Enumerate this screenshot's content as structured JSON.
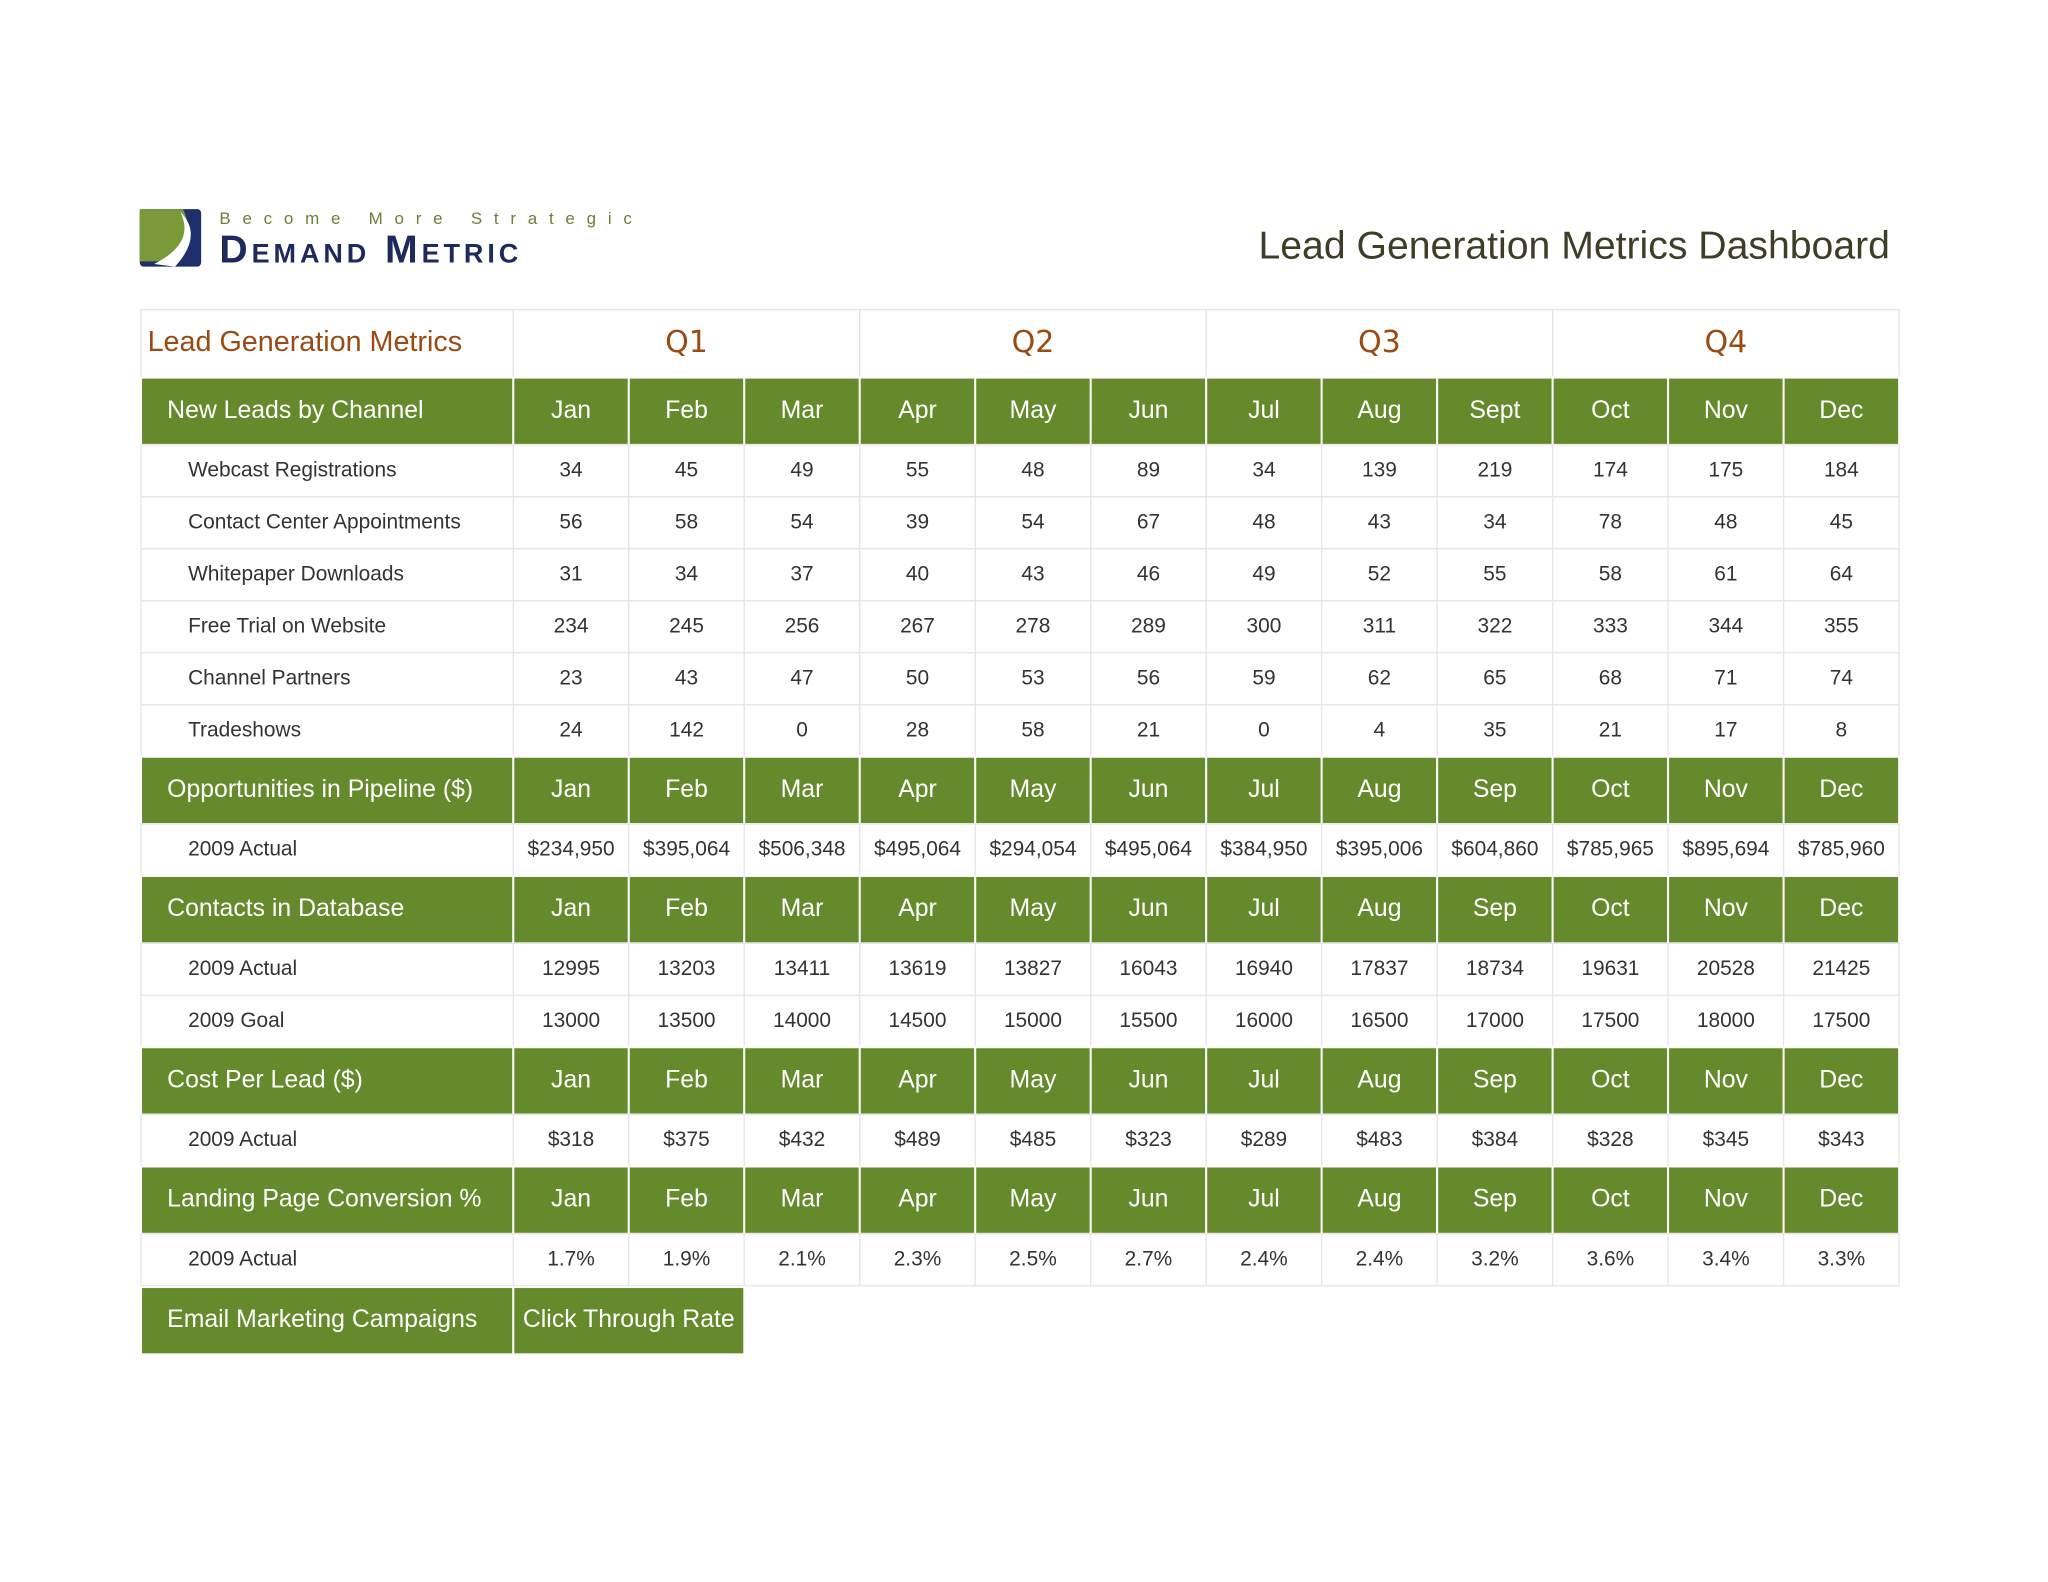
{
  "header": {
    "tagline": "Become More Strategic",
    "brand": "Demand Metric",
    "title": "Lead Generation Metrics Dashboard"
  },
  "table": {
    "heading": "Lead Generation Metrics",
    "quarters": [
      "Q1",
      "Q2",
      "Q3",
      "Q4"
    ],
    "sections": [
      {
        "title": "New Leads by Channel",
        "months": [
          "Jan",
          "Feb",
          "Mar",
          "Apr",
          "May",
          "Jun",
          "Jul",
          "Aug",
          "Sept",
          "Oct",
          "Nov",
          "Dec"
        ],
        "rows": [
          {
            "label": "Webcast Registrations",
            "values": [
              34,
              45,
              49,
              55,
              48,
              89,
              34,
              139,
              219,
              174,
              175,
              184
            ]
          },
          {
            "label": "Contact Center Appointments",
            "values": [
              56,
              58,
              54,
              39,
              54,
              67,
              48,
              43,
              34,
              78,
              48,
              45
            ]
          },
          {
            "label": "Whitepaper Downloads",
            "values": [
              31,
              34,
              37,
              40,
              43,
              46,
              49,
              52,
              55,
              58,
              61,
              64
            ]
          },
          {
            "label": "Free Trial on Website",
            "values": [
              234,
              245,
              256,
              267,
              278,
              289,
              300,
              311,
              322,
              333,
              344,
              355
            ]
          },
          {
            "label": "Channel Partners",
            "values": [
              23,
              43,
              47,
              50,
              53,
              56,
              59,
              62,
              65,
              68,
              71,
              74
            ]
          },
          {
            "label": "Tradeshows",
            "values": [
              24,
              142,
              0,
              28,
              58,
              21,
              0,
              4,
              35,
              21,
              17,
              8
            ]
          }
        ]
      },
      {
        "title": "Opportunities in Pipeline ($)",
        "months": [
          "Jan",
          "Feb",
          "Mar",
          "Apr",
          "May",
          "Jun",
          "Jul",
          "Aug",
          "Sep",
          "Oct",
          "Nov",
          "Dec"
        ],
        "rows": [
          {
            "label": "2009 Actual",
            "values": [
              "$234,950",
              "$395,064",
              "$506,348",
              "$495,064",
              "$294,054",
              "$495,064",
              "$384,950",
              "$395,006",
              "$604,860",
              "$785,965",
              "$895,694",
              "$785,960"
            ]
          }
        ]
      },
      {
        "title": "Contacts in Database",
        "months": [
          "Jan",
          "Feb",
          "Mar",
          "Apr",
          "May",
          "Jun",
          "Jul",
          "Aug",
          "Sep",
          "Oct",
          "Nov",
          "Dec"
        ],
        "rows": [
          {
            "label": "2009 Actual",
            "values": [
              12995,
              13203,
              13411,
              13619,
              13827,
              16043,
              16940,
              17837,
              18734,
              19631,
              20528,
              21425
            ]
          },
          {
            "label": "2009 Goal",
            "values": [
              13000,
              13500,
              14000,
              14500,
              15000,
              15500,
              16000,
              16500,
              17000,
              17500,
              18000,
              17500
            ]
          }
        ]
      },
      {
        "title": "Cost Per Lead ($)",
        "months": [
          "Jan",
          "Feb",
          "Mar",
          "Apr",
          "May",
          "Jun",
          "Jul",
          "Aug",
          "Sep",
          "Oct",
          "Nov",
          "Dec"
        ],
        "rows": [
          {
            "label": "2009 Actual",
            "values": [
              "$318",
              "$375",
              "$432",
              "$489",
              "$485",
              "$323",
              "$289",
              "$483",
              "$384",
              "$328",
              "$345",
              "$343"
            ]
          }
        ]
      },
      {
        "title": "Landing Page Conversion %",
        "months": [
          "Jan",
          "Feb",
          "Mar",
          "Apr",
          "May",
          "Jun",
          "Jul",
          "Aug",
          "Sep",
          "Oct",
          "Nov",
          "Dec"
        ],
        "rows": [
          {
            "label": "2009 Actual",
            "values": [
              "1.7%",
              "1.9%",
              "2.1%",
              "2.3%",
              "2.5%",
              "2.7%",
              "2.4%",
              "2.4%",
              "3.2%",
              "3.6%",
              "3.4%",
              "3.3%"
            ]
          }
        ]
      }
    ],
    "email": {
      "title": "Email Marketing Campaigns",
      "column": "Click Through Rate"
    }
  }
}
